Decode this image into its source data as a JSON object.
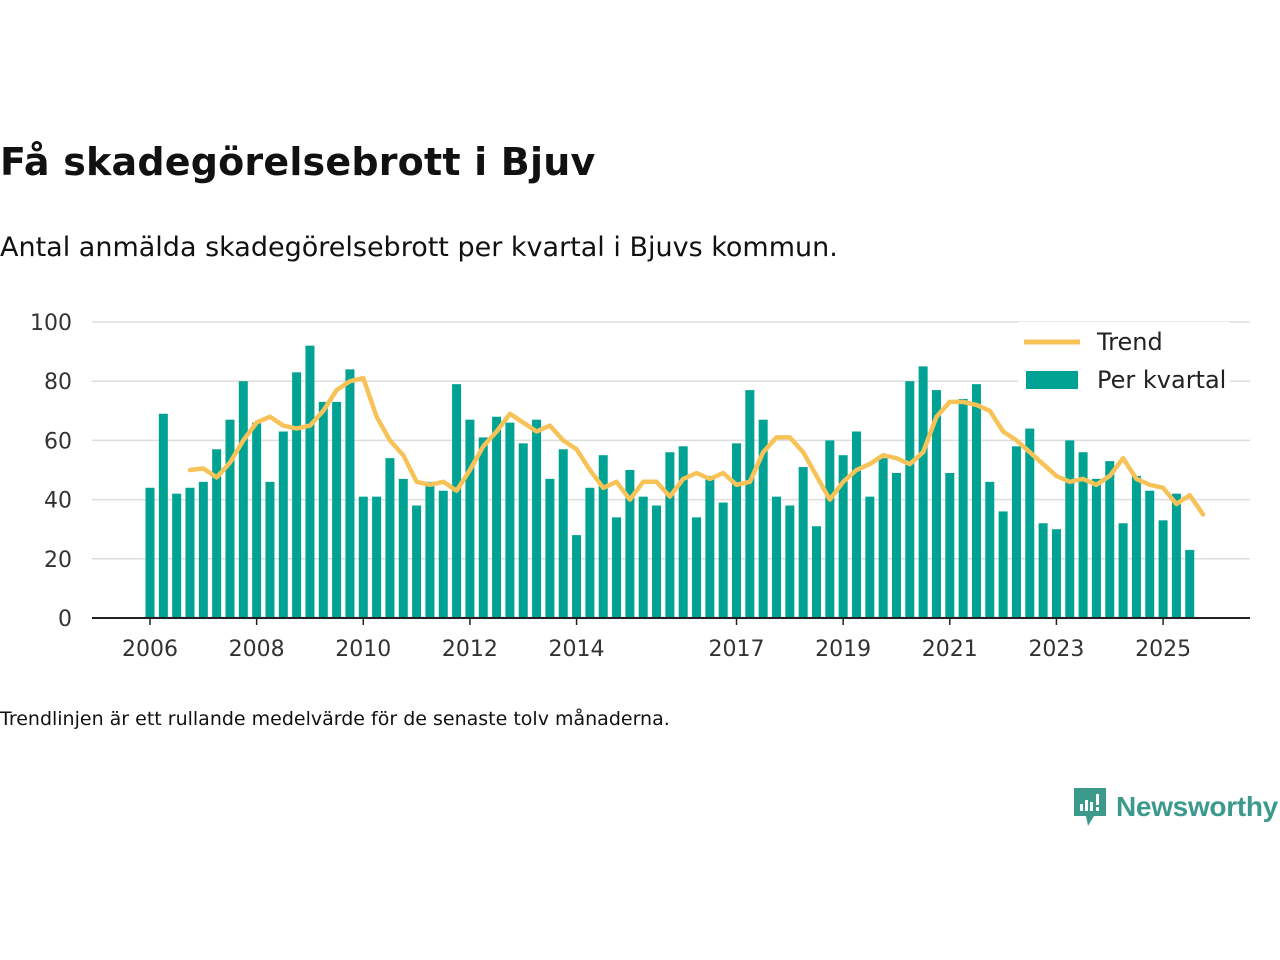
{
  "title": "Få skadegörelsebrott i Bjuv",
  "subtitle": "Antal anmälda skadegörelsebrott per kvartal i Bjuvs kommun.",
  "footnote": "Trendlinjen är ett rullande medelvärde för de senaste tolv månaderna.",
  "brand": {
    "name": "Newsworthy"
  },
  "colors": {
    "bar": "#00A293",
    "trend": "#F7C358",
    "grid": "#dddddd",
    "axis": "#222222"
  },
  "chart_data": {
    "type": "bar",
    "title": "Få skadegörelsebrott i Bjuv",
    "xlabel": "",
    "ylabel": "",
    "ylim": [
      0,
      100
    ],
    "yticks": [
      0,
      20,
      40,
      60,
      80,
      100
    ],
    "grid": true,
    "legend_position": "top-right",
    "legend": [
      "Trend",
      "Per kvartal"
    ],
    "xticks": [
      {
        "label": "2006",
        "index": 0
      },
      {
        "label": "2008",
        "index": 8
      },
      {
        "label": "2010",
        "index": 16
      },
      {
        "label": "2012",
        "index": 24
      },
      {
        "label": "2014",
        "index": 32
      },
      {
        "label": "2017",
        "index": 44
      },
      {
        "label": "2019",
        "index": 52
      },
      {
        "label": "2021",
        "index": 60
      },
      {
        "label": "2023",
        "index": 68
      },
      {
        "label": "2025",
        "index": 76
      }
    ],
    "series": [
      {
        "name": "Per kvartal",
        "type": "bar",
        "values": [
          44,
          69,
          42,
          44,
          46,
          57,
          67,
          80,
          66,
          46,
          63,
          83,
          92,
          73,
          73,
          84,
          41,
          41,
          54,
          47,
          38,
          46,
          43,
          79,
          67,
          61,
          68,
          66,
          59,
          67,
          47,
          57,
          28,
          44,
          55,
          34,
          50,
          41,
          38,
          56,
          58,
          34,
          48,
          39,
          59,
          77,
          67,
          41,
          38,
          51,
          31,
          60,
          55,
          63,
          41,
          54,
          49,
          80,
          85,
          77,
          49,
          74,
          79,
          46,
          36,
          58,
          64,
          32,
          30,
          60,
          56,
          47,
          53,
          32,
          48,
          43,
          33,
          42,
          23
        ]
      },
      {
        "name": "Trend",
        "type": "line",
        "start_index": 3,
        "values": [
          50,
          50.5,
          47.5,
          52.5,
          60,
          66,
          68,
          65,
          64,
          65,
          70,
          77,
          80,
          81,
          68,
          60,
          55,
          46,
          45,
          46,
          43,
          50,
          58,
          63,
          69,
          66,
          63,
          65,
          60,
          57,
          50,
          44,
          46,
          40,
          46,
          46,
          41,
          47,
          49,
          47,
          49,
          45,
          46,
          56,
          61,
          61,
          56,
          48,
          40,
          46,
          50,
          52,
          55,
          54,
          52,
          56,
          68,
          73,
          73,
          72,
          70,
          63,
          60,
          56,
          52,
          48,
          46,
          47,
          45,
          48,
          54,
          47,
          45,
          44,
          38.5,
          41.5,
          35
        ]
      }
    ]
  }
}
